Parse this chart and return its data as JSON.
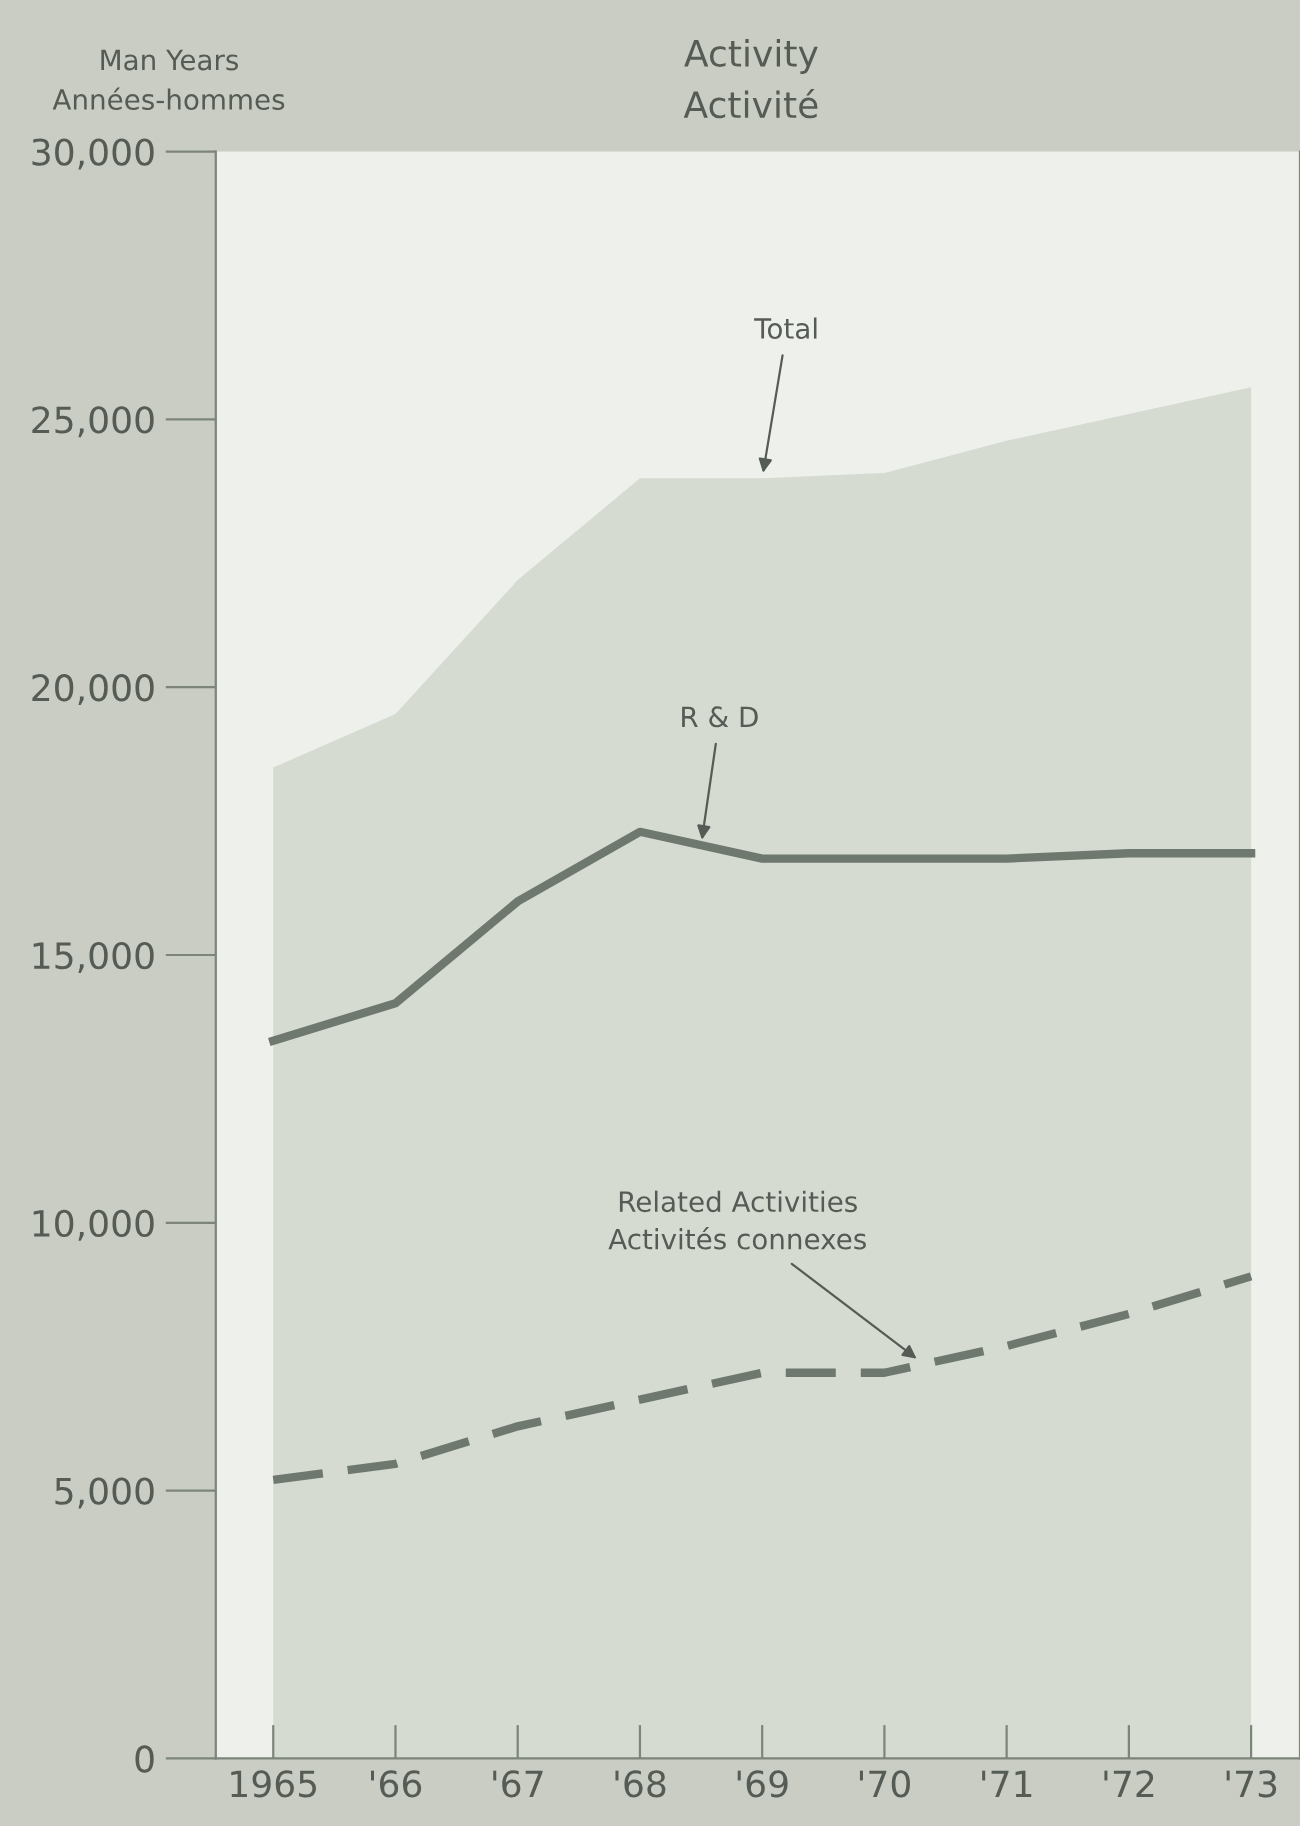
{
  "chart_data": {
    "type": "line",
    "title": "Activity\nActivité",
    "ylabel": "Man Years\nAnnées-hommes",
    "x": [
      1965,
      1966,
      1967,
      1968,
      1969,
      1970,
      1971,
      1972,
      1973
    ],
    "series": [
      {
        "type": "area",
        "color": "#d5dbd1",
        "values": [
          18500,
          19500,
          22000,
          23900,
          23900,
          24000,
          24600,
          25100,
          25600
        ]
      },
      {
        "color": "#6f786e",
        "line_style": "solid",
        "values": [
          13400,
          14100,
          16000,
          17300,
          16800,
          16800,
          16800,
          16900,
          16900
        ]
      },
      {
        "color": "#6f786e",
        "line_style": "dashed",
        "values": [
          5200,
          5500,
          6200,
          6700,
          7200,
          7200,
          7700,
          8300,
          9000
        ]
      }
    ],
    "annotations": [
      {
        "text": "Total",
        "x": 1969,
        "y": 23900
      },
      {
        "text": "R & D",
        "x": 1968.5,
        "y": 17050
      },
      {
        "text": "Related Activities\nActivités connexes",
        "x": 1970.3,
        "y": 7400
      }
    ],
    "xlim": [
      1964.53,
      1973.4
    ],
    "ylim": [
      0,
      30000
    ],
    "xticks": [
      {
        "value": 1965,
        "label": "1965"
      },
      {
        "value": 1966,
        "label": "'66"
      },
      {
        "value": 1967,
        "label": "'67"
      },
      {
        "value": 1968,
        "label": "'68"
      },
      {
        "value": 1969,
        "label": "'69"
      },
      {
        "value": 1970,
        "label": "'70"
      },
      {
        "value": 1971,
        "label": "'71"
      },
      {
        "value": 1972,
        "label": "'72"
      },
      {
        "value": 1973,
        "label": "'73"
      }
    ],
    "yticks": [
      {
        "value": 0,
        "label": "0"
      },
      {
        "value": 5000,
        "label": "5,000"
      },
      {
        "value": 10000,
        "label": "10,000"
      },
      {
        "value": 15000,
        "label": "15,000"
      },
      {
        "value": 20000,
        "label": "20,000"
      },
      {
        "value": 25000,
        "label": "25,000"
      },
      {
        "value": 30000,
        "label": "30,000"
      }
    ],
    "grid": false,
    "legend": false
  }
}
